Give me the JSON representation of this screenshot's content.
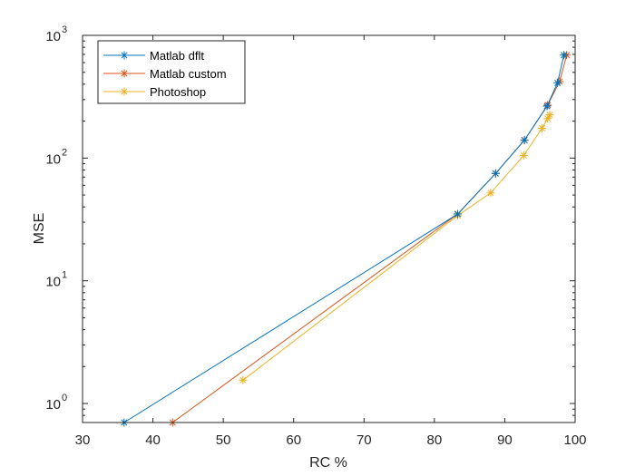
{
  "chart_data": {
    "type": "line",
    "xlabel": "RC %",
    "ylabel": "MSE",
    "xlim": [
      30,
      100
    ],
    "ylim": [
      0.7,
      1000
    ],
    "yscale": "log",
    "x_ticks": [
      30,
      40,
      50,
      60,
      70,
      80,
      90,
      100
    ],
    "y_ticks": [
      {
        "value": 1,
        "base": "10",
        "exp": "0"
      },
      {
        "value": 10,
        "base": "10",
        "exp": "1"
      },
      {
        "value": 100,
        "base": "10",
        "exp": "2"
      },
      {
        "value": 1000,
        "base": "10",
        "exp": "3"
      }
    ],
    "grid": false,
    "legend": "top-left",
    "marker": "asterisk",
    "series": [
      {
        "name": "Matlab dflt",
        "color": "#0072BD",
        "x": [
          35.9,
          83.3,
          88.7,
          92.8,
          96.0,
          97.5,
          98.4
        ],
        "y": [
          0.7,
          35,
          75,
          140,
          265,
          410,
          690
        ]
      },
      {
        "name": "Matlab custom",
        "color": "#D95319",
        "x": [
          42.8,
          83.3,
          88.7,
          92.8,
          96.1,
          97.8,
          98.8
        ],
        "y": [
          0.7,
          35,
          75,
          140,
          270,
          420,
          690
        ]
      },
      {
        "name": "Photoshop",
        "color": "#EDB120",
        "x": [
          52.8,
          83.3,
          88.0,
          92.7,
          95.3,
          96.1,
          96.4
        ],
        "y": [
          1.55,
          34,
          52,
          105,
          175,
          210,
          225
        ]
      }
    ]
  }
}
